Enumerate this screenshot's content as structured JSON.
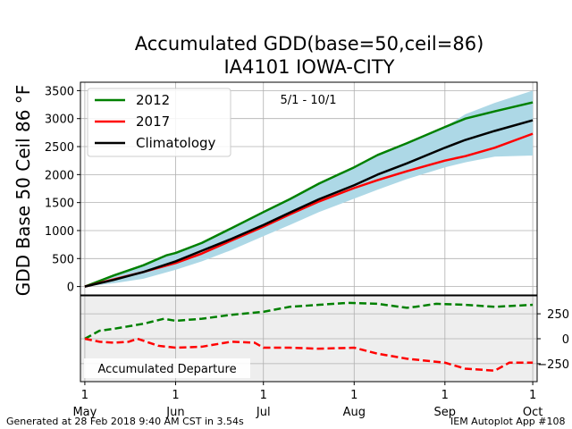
{
  "footer": {
    "left": "Generated at 28 Feb 2018 9:40 AM CST in 3.54s",
    "right": "IEM Autoplot App #108"
  },
  "chart_data": [
    {
      "type": "line",
      "title": "Accumulated GDD(base=50,ceil=86)",
      "subtitle": "IA4101 IOWA-CITY",
      "ylabel": "GDD Base 50 Ceil 86 °F",
      "annotation": "5/1 - 10/1",
      "ylim": [
        -150,
        3650
      ],
      "yticks": [
        0,
        500,
        1000,
        1500,
        2000,
        2500,
        3000,
        3500
      ],
      "x_days": [
        0,
        31,
        61,
        92,
        123,
        153
      ],
      "x_ticklabels": [
        "1\nMay",
        "1\nJun",
        "1\nJul",
        "1\nAug",
        "1\nSep",
        "1\nOct"
      ],
      "grid": true,
      "legend_position": "top-left",
      "series": [
        {
          "name": "2012",
          "color": "#008000",
          "x": [
            0,
            10,
            20,
            28,
            31,
            40,
            50,
            61,
            70,
            80,
            92,
            100,
            110,
            123,
            130,
            140,
            153
          ],
          "y": [
            0,
            200,
            380,
            560,
            600,
            780,
            1040,
            1330,
            1560,
            1840,
            2130,
            2350,
            2560,
            2850,
            3000,
            3130,
            3290
          ]
        },
        {
          "name": "2017",
          "color": "#ff0000",
          "x": [
            0,
            10,
            20,
            31,
            40,
            50,
            61,
            70,
            80,
            92,
            100,
            110,
            123,
            130,
            140,
            153
          ],
          "y": [
            0,
            130,
            260,
            420,
            590,
            820,
            1070,
            1290,
            1520,
            1760,
            1900,
            2060,
            2250,
            2330,
            2480,
            2730
          ]
        },
        {
          "name": "Climatology",
          "color": "#000000",
          "x": [
            0,
            10,
            20,
            31,
            40,
            50,
            61,
            70,
            80,
            92,
            100,
            110,
            123,
            130,
            140,
            153
          ],
          "y": [
            0,
            120,
            260,
            450,
            640,
            850,
            1100,
            1320,
            1560,
            1810,
            2000,
            2200,
            2480,
            2620,
            2780,
            2970
          ]
        }
      ],
      "band": {
        "color": "#add8e6",
        "x": [
          0,
          10,
          20,
          31,
          40,
          50,
          61,
          70,
          80,
          92,
          100,
          110,
          123,
          130,
          140,
          153
        ],
        "low": [
          0,
          60,
          140,
          300,
          450,
          650,
          900,
          1100,
          1330,
          1570,
          1730,
          1920,
          2130,
          2220,
          2320,
          2340
        ],
        "high": [
          0,
          190,
          380,
          600,
          800,
          1050,
          1350,
          1580,
          1830,
          2110,
          2330,
          2560,
          2850,
          3080,
          3280,
          3500
        ]
      }
    },
    {
      "type": "line",
      "label": "Accumulated Departure",
      "ylim": [
        -430,
        430
      ],
      "yticks": [
        -250,
        0,
        250
      ],
      "yticklabels": [
        "−250",
        "0",
        "250"
      ],
      "grid": true,
      "series": [
        {
          "name": "2012",
          "color": "#008000",
          "style": "dashed",
          "x": [
            0,
            5,
            10,
            20,
            27,
            31,
            40,
            50,
            61,
            70,
            80,
            90,
            100,
            110,
            113,
            120,
            130,
            140,
            153
          ],
          "y": [
            0,
            80,
            100,
            150,
            200,
            180,
            200,
            240,
            270,
            320,
            340,
            360,
            350,
            310,
            320,
            350,
            340,
            320,
            340
          ]
        },
        {
          "name": "2017",
          "color": "#ff0000",
          "style": "dashed",
          "x": [
            0,
            5,
            10,
            15,
            18,
            25,
            31,
            40,
            50,
            58,
            61,
            70,
            80,
            92,
            100,
            110,
            123,
            130,
            140,
            145,
            153
          ],
          "y": [
            0,
            -30,
            -40,
            -30,
            0,
            -70,
            -90,
            -80,
            -30,
            -40,
            -90,
            -90,
            -100,
            -90,
            -150,
            -200,
            -240,
            -300,
            -320,
            -240,
            -240
          ]
        }
      ]
    }
  ]
}
